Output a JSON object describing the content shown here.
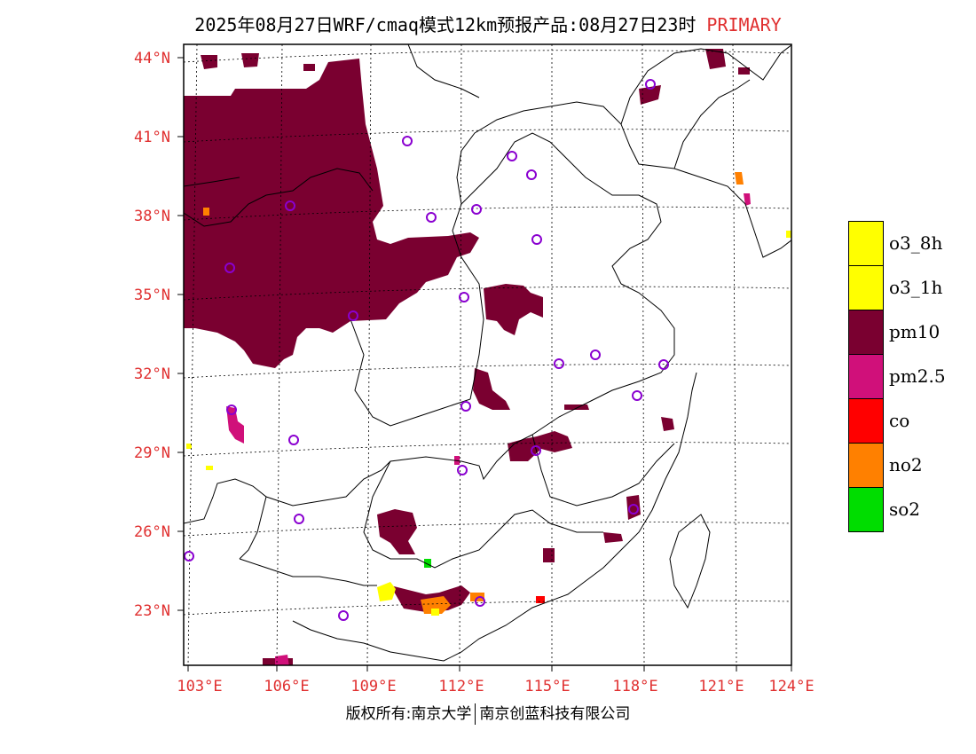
{
  "title": "2025年08月27日WRF/cmaq模式12km预报产品:08月27日23时",
  "tag": "PRIMARY",
  "lat_labels": [
    "44°N",
    "41°N",
    "38°N",
    "35°N",
    "32°N",
    "29°N",
    "26°N",
    "23°N"
  ],
  "lon_labels": [
    "103°E",
    "106°E",
    "109°E",
    "112°E",
    "115°E",
    "118°E",
    "121°E",
    "124°E"
  ],
  "legend": [
    {
      "label": "o3_8h",
      "color": "#ffff00"
    },
    {
      "label": "o3_1h",
      "color": "#ffff00"
    },
    {
      "label": "pm10",
      "color": "#7a0030"
    },
    {
      "label": "pm2.5",
      "color": "#d0107a"
    },
    {
      "label": "co",
      "color": "#ff0000"
    },
    {
      "label": "no2",
      "color": "#ff8000"
    },
    {
      "label": "so2",
      "color": "#00dd00"
    }
  ],
  "footer": {
    "left": "版权所有:南京大学",
    "right": "南京创蓝科技有限公司"
  },
  "colors": {
    "pm10": "#7a0030",
    "pm25": "#d0107a",
    "no2": "#ff8000",
    "o3": "#ffff00",
    "so2": "#00dd00",
    "co": "#ff0000",
    "station": "#8a00d0"
  }
}
